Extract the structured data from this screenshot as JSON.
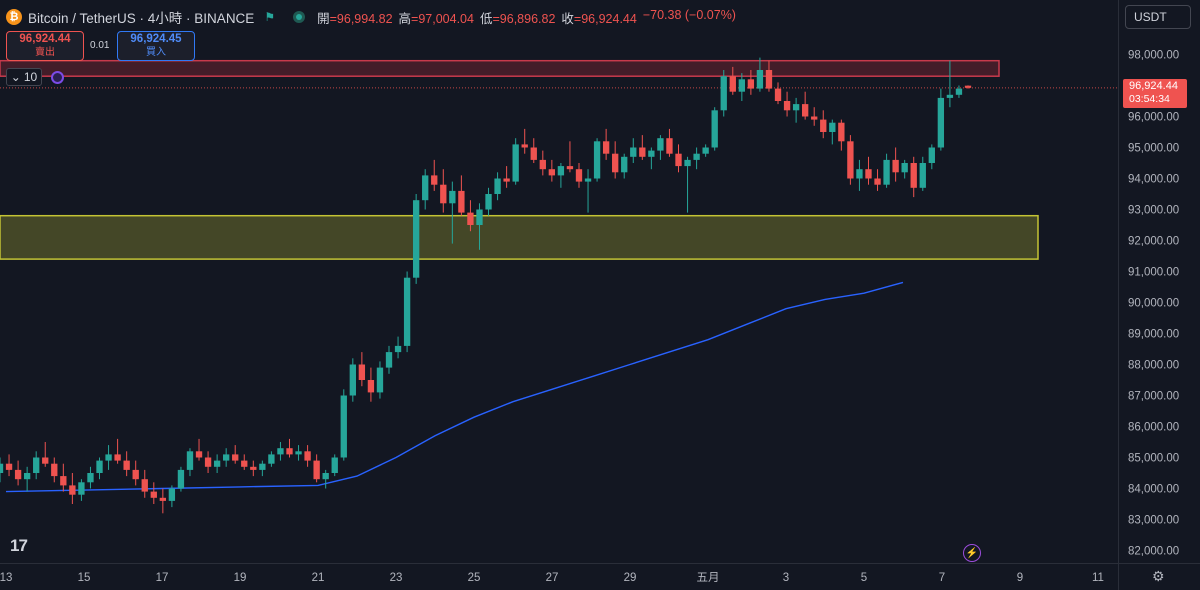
{
  "header": {
    "symbol_title": "Bitcoin / TetherUS · 4小時 · BINANCE",
    "logo_glyph": "₿",
    "ohlc": {
      "open_label": "開",
      "open": "=96,994.82",
      "high_label": "高",
      "high": "=97,004.04",
      "low_label": "低",
      "low": "=96,896.82",
      "close_label": "收",
      "close": "=96,924.44",
      "change": "−70.38 (−0.07%)"
    }
  },
  "trade_panel": {
    "sell_price": "96,924.44",
    "sell_label": "賣出",
    "spread": "0.01",
    "buy_price": "96,924.45",
    "buy_label": "買入",
    "lot_size": "10"
  },
  "currency_selector": "USDT",
  "price_tag": {
    "price": "96,924.44",
    "countdown": "03:54:34"
  },
  "colors": {
    "up": "#26a69a",
    "down": "#ef5350",
    "ma": "#2962ff",
    "resistance_zone": "#b22c3c",
    "support_zone": "#c4c435",
    "background": "#131722"
  },
  "icons": {
    "collapse": "chevron-down-icon",
    "alert": "alert-ring-icon",
    "settings": "gear-icon",
    "bolt": "lightning-icon",
    "tv": "tradingview-logo"
  },
  "chart_data": {
    "type": "candlestick",
    "title": "Bitcoin / TetherUS · 4小時 · BINANCE",
    "interval": "4h",
    "ylim": [
      81800,
      98600
    ],
    "y_ticks": [
      "98,000.00",
      "97,000.00",
      "96,000.00",
      "95,000.00",
      "94,000.00",
      "93,000.00",
      "92,000.00",
      "91,000.00",
      "90,000.00",
      "89,000.00",
      "88,000.00",
      "87,000.00",
      "86,000.00",
      "85,000.00",
      "84,000.00",
      "83,000.00",
      "82,000.00"
    ],
    "x_ticks": [
      "13",
      "15",
      "17",
      "19",
      "21",
      "23",
      "25",
      "27",
      "29",
      "五月",
      "3",
      "5",
      "7",
      "9",
      "11"
    ],
    "x_start_day": 13,
    "resistance_zone": [
      97300,
      97800
    ],
    "support_zone": [
      91400,
      92800
    ],
    "last_price_line": 96924.44,
    "ma_line": [
      [
        13,
        83900
      ],
      [
        15,
        83950
      ],
      [
        17,
        84000
      ],
      [
        19,
        84050
      ],
      [
        21,
        84100
      ],
      [
        22,
        84400
      ],
      [
        23,
        85000
      ],
      [
        24,
        85700
      ],
      [
        25,
        86300
      ],
      [
        26,
        86800
      ],
      [
        27,
        87200
      ],
      [
        28,
        87600
      ],
      [
        29,
        88000
      ],
      [
        30,
        88400
      ],
      [
        31,
        88800
      ],
      [
        32,
        89300
      ],
      [
        33,
        89800
      ],
      [
        34,
        90100
      ],
      [
        35,
        90300
      ],
      [
        36,
        90650
      ]
    ],
    "candles": [
      [
        84500,
        85000,
        84200,
        84800
      ],
      [
        84800,
        85100,
        84400,
        84600
      ],
      [
        84600,
        84900,
        84100,
        84300
      ],
      [
        84300,
        84700,
        83900,
        84500
      ],
      [
        84500,
        85200,
        84300,
        85000
      ],
      [
        85000,
        85500,
        84700,
        84800
      ],
      [
        84800,
        85000,
        84200,
        84400
      ],
      [
        84400,
        84800,
        83900,
        84100
      ],
      [
        84100,
        84500,
        83500,
        83800
      ],
      [
        83800,
        84300,
        83600,
        84200
      ],
      [
        84200,
        84700,
        84000,
        84500
      ],
      [
        84500,
        85000,
        84300,
        84900
      ],
      [
        84900,
        85400,
        84600,
        85100
      ],
      [
        85100,
        85600,
        84800,
        84900
      ],
      [
        84900,
        85200,
        84400,
        84600
      ],
      [
        84600,
        84900,
        84100,
        84300
      ],
      [
        84300,
        84600,
        83700,
        83900
      ],
      [
        83900,
        84200,
        83500,
        83700
      ],
      [
        83700,
        84000,
        83200,
        83600
      ],
      [
        83600,
        84100,
        83400,
        84000
      ],
      [
        84000,
        84700,
        83900,
        84600
      ],
      [
        84600,
        85300,
        84400,
        85200
      ],
      [
        85200,
        85600,
        84900,
        85000
      ],
      [
        85000,
        85200,
        84500,
        84700
      ],
      [
        84700,
        85100,
        84500,
        84900
      ],
      [
        84900,
        85300,
        84700,
        85100
      ],
      [
        85100,
        85400,
        84800,
        84900
      ],
      [
        84900,
        85100,
        84600,
        84700
      ],
      [
        84700,
        84900,
        84400,
        84600
      ],
      [
        84600,
        84900,
        84400,
        84800
      ],
      [
        84800,
        85200,
        84700,
        85100
      ],
      [
        85100,
        85500,
        84900,
        85300
      ],
      [
        85300,
        85600,
        85000,
        85100
      ],
      [
        85100,
        85400,
        84900,
        85200
      ],
      [
        85200,
        85400,
        84700,
        84900
      ],
      [
        84900,
        85100,
        84200,
        84300
      ],
      [
        84300,
        84600,
        84000,
        84500
      ],
      [
        84500,
        85100,
        84400,
        85000
      ],
      [
        85000,
        87200,
        84900,
        87000
      ],
      [
        87000,
        88200,
        86800,
        88000
      ],
      [
        88000,
        88400,
        87300,
        87500
      ],
      [
        87500,
        87900,
        86800,
        87100
      ],
      [
        87100,
        88100,
        86900,
        87900
      ],
      [
        87900,
        88600,
        87700,
        88400
      ],
      [
        88400,
        88900,
        88200,
        88600
      ],
      [
        88600,
        91000,
        88400,
        90800
      ],
      [
        90800,
        93500,
        90600,
        93300
      ],
      [
        93300,
        94300,
        93000,
        94100
      ],
      [
        94100,
        94600,
        93600,
        93800
      ],
      [
        93800,
        94300,
        92900,
        93200
      ],
      [
        93200,
        93900,
        91900,
        93600
      ],
      [
        93600,
        94100,
        92800,
        92900
      ],
      [
        92900,
        93300,
        92300,
        92500
      ],
      [
        92500,
        93200,
        91700,
        93000
      ],
      [
        93000,
        93700,
        92800,
        93500
      ],
      [
        93500,
        94200,
        93300,
        94000
      ],
      [
        94000,
        94400,
        93700,
        93900
      ],
      [
        93900,
        95300,
        93800,
        95100
      ],
      [
        95100,
        95600,
        94800,
        95000
      ],
      [
        95000,
        95300,
        94500,
        94600
      ],
      [
        94600,
        94900,
        94100,
        94300
      ],
      [
        94300,
        94600,
        93900,
        94100
      ],
      [
        94100,
        94500,
        93700,
        94400
      ],
      [
        94400,
        95200,
        94200,
        94300
      ],
      [
        94300,
        94500,
        93700,
        93900
      ],
      [
        93900,
        94300,
        92900,
        94000
      ],
      [
        94000,
        95300,
        93900,
        95200
      ],
      [
        95200,
        95600,
        94600,
        94800
      ],
      [
        94800,
        95200,
        94000,
        94200
      ],
      [
        94200,
        94800,
        94000,
        94700
      ],
      [
        94700,
        95300,
        94500,
        95000
      ],
      [
        95000,
        95400,
        94600,
        94700
      ],
      [
        94700,
        95000,
        94300,
        94900
      ],
      [
        94900,
        95400,
        94600,
        95300
      ],
      [
        95300,
        95600,
        94700,
        94800
      ],
      [
        94800,
        95100,
        94200,
        94400
      ],
      [
        94400,
        94700,
        92900,
        94600
      ],
      [
        94600,
        95000,
        94300,
        94800
      ],
      [
        94800,
        95100,
        94700,
        95000
      ],
      [
        95000,
        96300,
        94900,
        96200
      ],
      [
        96200,
        97500,
        96000,
        97300
      ],
      [
        97300,
        97600,
        96700,
        96800
      ],
      [
        96800,
        97400,
        96500,
        97200
      ],
      [
        97200,
        97500,
        96700,
        96900
      ],
      [
        96900,
        97900,
        96800,
        97500
      ],
      [
        97500,
        97800,
        96800,
        96900
      ],
      [
        96900,
        97100,
        96400,
        96500
      ],
      [
        96500,
        96800,
        96000,
        96200
      ],
      [
        96200,
        96600,
        95800,
        96400
      ],
      [
        96400,
        96800,
        95900,
        96000
      ],
      [
        96000,
        96300,
        95700,
        95900
      ],
      [
        95900,
        96200,
        95300,
        95500
      ],
      [
        95500,
        95900,
        95100,
        95800
      ],
      [
        95800,
        95900,
        94900,
        95200
      ],
      [
        95200,
        95400,
        93800,
        94000
      ],
      [
        94000,
        94600,
        93600,
        94300
      ],
      [
        94300,
        94700,
        93800,
        94000
      ],
      [
        94000,
        94300,
        93600,
        93800
      ],
      [
        93800,
        94800,
        93700,
        94600
      ],
      [
        94600,
        95000,
        93900,
        94200
      ],
      [
        94200,
        94600,
        94000,
        94500
      ],
      [
        94500,
        94700,
        93400,
        93700
      ],
      [
        93700,
        94700,
        93600,
        94500
      ],
      [
        94500,
        95100,
        94300,
        95000
      ],
      [
        95000,
        96900,
        94900,
        96600
      ],
      [
        96600,
        97800,
        96300,
        96700
      ],
      [
        96700,
        97000,
        96600,
        96900
      ],
      [
        96994.82,
        97004.04,
        96896.82,
        96924.44
      ]
    ]
  }
}
